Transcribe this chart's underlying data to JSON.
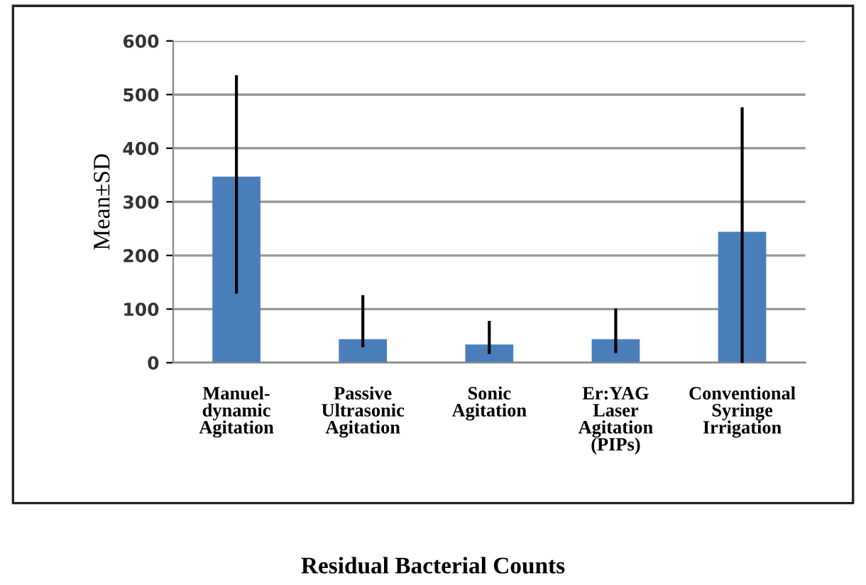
{
  "chart_data": {
    "type": "bar",
    "title": "Residual Bacterial Counts",
    "ylabel": "Mean±SD",
    "categories": [
      "Manuel-\ndynamic\nAgitation",
      "Passive\nUltrasonic\nAgitation",
      "Sonic\nAgitation",
      "Er:YAG\nLaser\nAgitation\n(PIPs)",
      "Conventional\nSyringe\nIrrigation"
    ],
    "values": [
      347,
      44,
      34,
      44,
      244
    ],
    "errors": [
      [
        129,
        536
      ],
      [
        29,
        126
      ],
      [
        16,
        78
      ],
      [
        18,
        101
      ],
      [
        0,
        476
      ]
    ],
    "color": "#4a7ebb",
    "ylim": [
      0,
      600
    ],
    "yticks": [
      0,
      100,
      200,
      300,
      400,
      500,
      600
    ],
    "grid": "y",
    "legend": false
  }
}
